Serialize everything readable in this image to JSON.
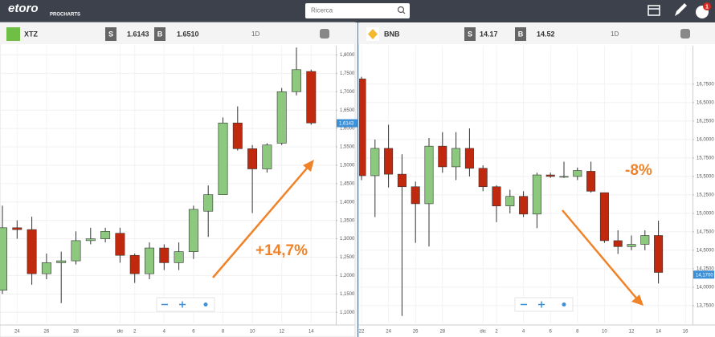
{
  "header": {
    "logo": "etoro",
    "subtitle": "PROCHARTS",
    "search_placeholder": "Ricerca",
    "badge": "1"
  },
  "chart_data": [
    {
      "type": "candlestick",
      "symbol": "XTZ",
      "sell_label": "S",
      "sell": "1.6143",
      "buy_label": "B",
      "buy": "1.6510",
      "interval": "1D",
      "annotation": "+14,7%",
      "categories": [
        null,
        "24",
        null,
        "26",
        null,
        "28",
        null,
        null,
        "dic",
        "2",
        null,
        "4",
        null,
        "6",
        null,
        "8",
        null,
        "10",
        null,
        "12",
        null,
        "14"
      ],
      "open": [
        1.16,
        1.33,
        1.325,
        1.205,
        1.235,
        1.24,
        1.295,
        1.3,
        1.315,
        1.255,
        1.205,
        1.275,
        1.235,
        1.265,
        1.375,
        1.42,
        1.615,
        1.545,
        1.49,
        1.56,
        1.7,
        1.755
      ],
      "high": [
        1.39,
        1.35,
        1.36,
        1.26,
        1.265,
        1.32,
        1.33,
        1.33,
        1.33,
        1.26,
        1.29,
        1.285,
        1.29,
        1.39,
        1.445,
        1.63,
        1.66,
        1.555,
        1.56,
        1.71,
        1.82,
        1.76
      ],
      "low": [
        1.15,
        1.3,
        1.175,
        1.19,
        1.125,
        1.23,
        1.285,
        1.29,
        1.235,
        1.18,
        1.19,
        1.215,
        1.215,
        1.245,
        1.305,
        1.42,
        1.54,
        1.37,
        1.48,
        1.555,
        1.69,
        1.61
      ],
      "close": [
        1.33,
        1.325,
        1.205,
        1.235,
        1.24,
        1.295,
        1.3,
        1.32,
        1.255,
        1.205,
        1.275,
        1.235,
        1.265,
        1.38,
        1.42,
        1.615,
        1.545,
        1.49,
        1.555,
        1.7,
        1.76,
        1.615
      ],
      "ylim": [
        1.07,
        1.825
      ],
      "yticks": [
        {
          "value": 1.1,
          "label": "1,1000"
        },
        {
          "value": 1.15,
          "label": "1,1500"
        },
        {
          "value": 1.2,
          "label": "1,2000"
        },
        {
          "value": 1.25,
          "label": "1,2500"
        },
        {
          "value": 1.3,
          "label": "1,3000"
        },
        {
          "value": 1.35,
          "label": "1,3500"
        },
        {
          "value": 1.4,
          "label": "1,4000"
        },
        {
          "value": 1.45,
          "label": "1,4500"
        },
        {
          "value": 1.5,
          "label": "1,5000"
        },
        {
          "value": 1.55,
          "label": "1,5500"
        },
        {
          "value": 1.6,
          "label": "1,6000"
        },
        {
          "value": 1.65,
          "label": "1,6500"
        },
        {
          "value": 1.7,
          "label": "1,7000"
        },
        {
          "value": 1.75,
          "label": "1,7500"
        },
        {
          "value": 1.8,
          "label": "1,8000"
        }
      ],
      "current_price": {
        "value": 1.6143,
        "label": "1,6143"
      },
      "grid": true,
      "up_color": "#8cc97e",
      "down_color": "#c1290e",
      "annotation_color": "#f08228"
    },
    {
      "type": "candlestick",
      "symbol": "BNB",
      "sell_label": "S",
      "sell": "14.17",
      "buy_label": "B",
      "buy": "14.52",
      "interval": "1D",
      "annotation": "-8%",
      "categories": [
        "22",
        null,
        "24",
        null,
        "26",
        null,
        "28",
        null,
        null,
        "dic",
        "2",
        null,
        "4",
        null,
        "6",
        null,
        "8",
        null,
        "10",
        null,
        "12",
        null,
        "14",
        null,
        "16"
      ],
      "open": [
        16.82,
        15.51,
        15.88,
        15.53,
        15.36,
        15.13,
        15.91,
        15.63,
        15.88,
        15.61,
        15.36,
        15.1,
        15.23,
        14.99,
        15.52,
        15.49,
        15.5,
        15.57,
        15.28,
        14.63,
        14.55,
        14.58,
        14.7,
        null,
        null
      ],
      "high": [
        16.85,
        16.0,
        16.2,
        15.8,
        15.43,
        16.02,
        16.1,
        16.1,
        16.15,
        15.65,
        15.38,
        15.32,
        15.3,
        15.55,
        15.55,
        15.7,
        15.62,
        15.7,
        15.28,
        14.77,
        14.7,
        14.77,
        14.9,
        null,
        null
      ],
      "low": [
        15.45,
        14.95,
        15.35,
        13.61,
        14.6,
        14.55,
        15.55,
        15.45,
        15.5,
        15.3,
        14.88,
        15.0,
        14.95,
        14.8,
        15.48,
        15.48,
        15.45,
        15.28,
        14.6,
        14.45,
        14.5,
        14.5,
        14.05,
        null,
        null
      ],
      "close": [
        15.51,
        15.88,
        15.53,
        15.36,
        15.13,
        15.91,
        15.63,
        15.88,
        15.61,
        15.36,
        15.1,
        15.23,
        14.99,
        15.52,
        15.5,
        15.5,
        15.58,
        15.3,
        14.63,
        14.55,
        14.58,
        14.7,
        14.2,
        null,
        null
      ],
      "ylim": [
        13.51,
        17.27
      ],
      "yticks": [
        {
          "value": 13.75,
          "label": "13,7500"
        },
        {
          "value": 14,
          "label": "14,0000"
        },
        {
          "value": 14.25,
          "label": "14,2500"
        },
        {
          "value": 14.5,
          "label": "14,5000"
        },
        {
          "value": 14.75,
          "label": "14,7500"
        },
        {
          "value": 15,
          "label": "15,0000"
        },
        {
          "value": 15.25,
          "label": "15,2500"
        },
        {
          "value": 15.5,
          "label": "15,5000"
        },
        {
          "value": 15.75,
          "label": "15,7500"
        },
        {
          "value": 16,
          "label": "16,0000"
        },
        {
          "value": 16.25,
          "label": "16,2500"
        },
        {
          "value": 16.5,
          "label": "16,5000"
        },
        {
          "value": 16.75,
          "label": "16,7500"
        }
      ],
      "current_price": {
        "value": 14.17,
        "label": "14,1700"
      },
      "grid": true,
      "up_color": "#8cc97e",
      "down_color": "#c1290e",
      "annotation_color": "#f08228"
    }
  ]
}
